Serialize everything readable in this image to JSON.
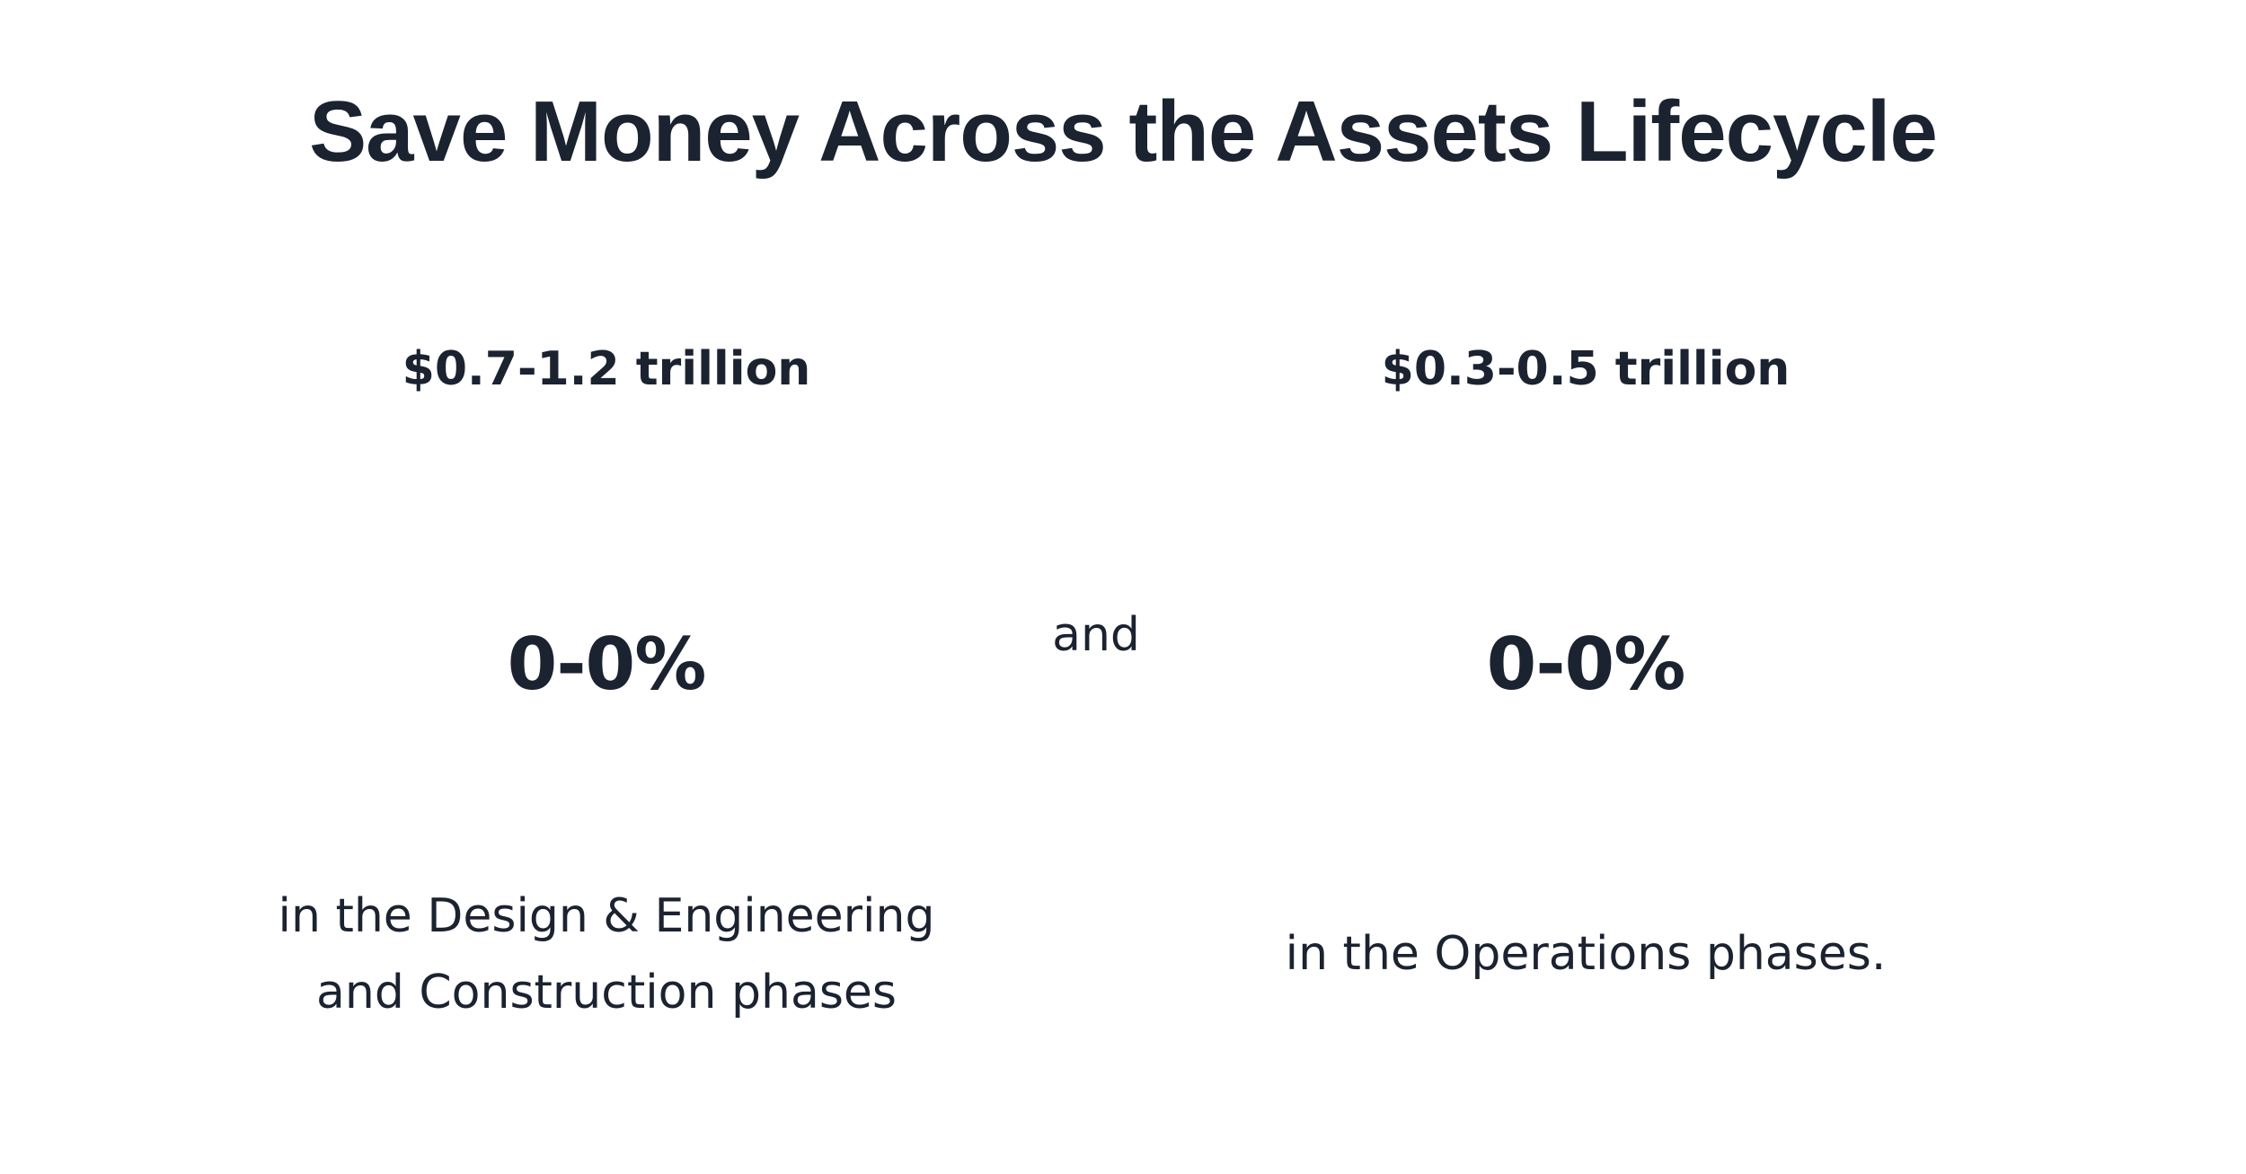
{
  "headline": "Save Money Across the Assets Lifecycle",
  "connector": "and",
  "stats": [
    {
      "amount": "$0.7-1.2 trillion",
      "percent": "0-0%",
      "phase": "in the Design & Engineering and Construction phases"
    },
    {
      "amount": "$0.3-0.5 trillion",
      "percent": "0-0%",
      "phase": "in the Operations phases."
    }
  ]
}
